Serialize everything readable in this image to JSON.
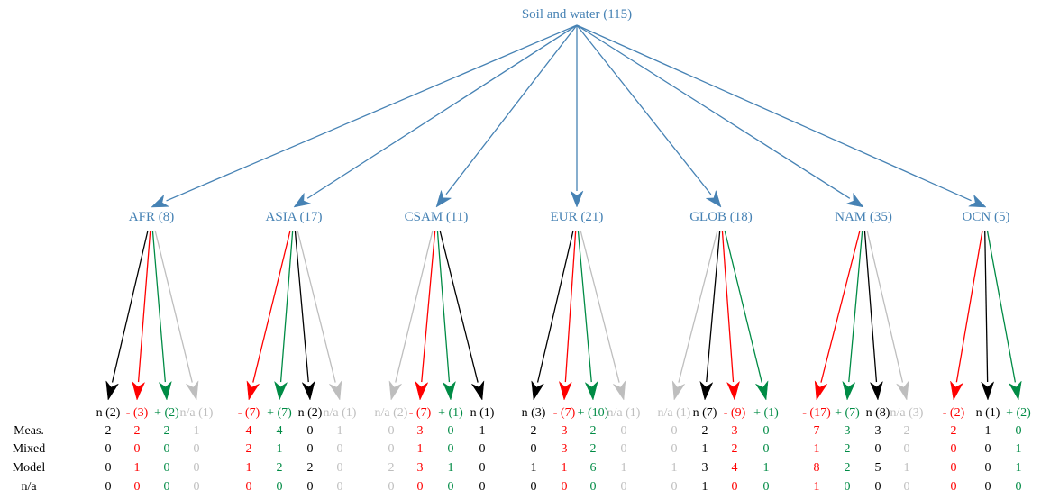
{
  "colors": {
    "blue": "#4682B4",
    "black": "#000000",
    "red": "#FF0000",
    "green": "#008B45",
    "gray": "#BEBEBE"
  },
  "root": {
    "label": "Soil and water (115)"
  },
  "row_labels": [
    "Meas.",
    "Mixed",
    "Model",
    "n/a"
  ],
  "regions": [
    {
      "label": "AFR (8)",
      "leaves": [
        {
          "label": "n (2)",
          "kind": "n",
          "values": [
            "2",
            "0",
            "0",
            "0"
          ]
        },
        {
          "label": "- (3)",
          "kind": "neg",
          "values": [
            "2",
            "0",
            "1",
            "0"
          ]
        },
        {
          "label": "+ (2)",
          "kind": "pos",
          "values": [
            "2",
            "0",
            "0",
            "0"
          ]
        },
        {
          "label": "n/a (1)",
          "kind": "na",
          "values": [
            "1",
            "0",
            "0",
            "0"
          ]
        }
      ]
    },
    {
      "label": "ASIA (17)",
      "leaves": [
        {
          "label": "- (7)",
          "kind": "neg",
          "values": [
            "4",
            "2",
            "1",
            "0"
          ]
        },
        {
          "label": "+ (7)",
          "kind": "pos",
          "values": [
            "4",
            "1",
            "2",
            "0"
          ]
        },
        {
          "label": "n (2)",
          "kind": "n",
          "values": [
            "0",
            "0",
            "2",
            "0"
          ]
        },
        {
          "label": "n/a (1)",
          "kind": "na",
          "values": [
            "1",
            "0",
            "0",
            "0"
          ]
        }
      ]
    },
    {
      "label": "CSAM (11)",
      "leaves": [
        {
          "label": "n/a (2)",
          "kind": "na",
          "values": [
            "0",
            "0",
            "2",
            "0"
          ]
        },
        {
          "label": "- (7)",
          "kind": "neg",
          "values": [
            "3",
            "1",
            "3",
            "0"
          ]
        },
        {
          "label": "+ (1)",
          "kind": "pos",
          "values": [
            "0",
            "0",
            "1",
            "0"
          ]
        },
        {
          "label": "n (1)",
          "kind": "n",
          "values": [
            "1",
            "0",
            "0",
            "0"
          ]
        }
      ]
    },
    {
      "label": "EUR (21)",
      "leaves": [
        {
          "label": "n (3)",
          "kind": "n",
          "values": [
            "2",
            "0",
            "1",
            "0"
          ]
        },
        {
          "label": "- (7)",
          "kind": "neg",
          "values": [
            "3",
            "3",
            "1",
            "0"
          ]
        },
        {
          "label": "+ (10)",
          "kind": "pos",
          "values": [
            "2",
            "2",
            "6",
            "0"
          ]
        },
        {
          "label": "n/a (1)",
          "kind": "na",
          "values": [
            "0",
            "0",
            "1",
            "0"
          ]
        }
      ]
    },
    {
      "label": "GLOB (18)",
      "leaves": [
        {
          "label": "n/a (1)",
          "kind": "na",
          "values": [
            "0",
            "0",
            "1",
            "0"
          ]
        },
        {
          "label": "n (7)",
          "kind": "n",
          "values": [
            "2",
            "1",
            "3",
            "1"
          ]
        },
        {
          "label": "- (9)",
          "kind": "neg",
          "values": [
            "3",
            "2",
            "4",
            "0"
          ]
        },
        {
          "label": "+ (1)",
          "kind": "pos",
          "values": [
            "0",
            "0",
            "1",
            "0"
          ]
        }
      ]
    },
    {
      "label": "NAM (35)",
      "leaves": [
        {
          "label": "- (17)",
          "kind": "neg",
          "values": [
            "7",
            "1",
            "8",
            "1"
          ]
        },
        {
          "label": "+ (7)",
          "kind": "pos",
          "values": [
            "3",
            "2",
            "2",
            "0"
          ]
        },
        {
          "label": "n (8)",
          "kind": "n",
          "values": [
            "3",
            "0",
            "5",
            "0"
          ]
        },
        {
          "label": "n/a (3)",
          "kind": "na",
          "values": [
            "2",
            "0",
            "1",
            "0"
          ]
        }
      ]
    },
    {
      "label": "OCN (5)",
      "leaves": [
        {
          "label": "- (2)",
          "kind": "neg",
          "values": [
            "2",
            "0",
            "0",
            "0"
          ]
        },
        {
          "label": "n (1)",
          "kind": "n",
          "values": [
            "1",
            "0",
            "0",
            "0"
          ]
        },
        {
          "label": "+ (2)",
          "kind": "pos",
          "values": [
            "0",
            "1",
            "1",
            "0"
          ]
        }
      ]
    }
  ]
}
